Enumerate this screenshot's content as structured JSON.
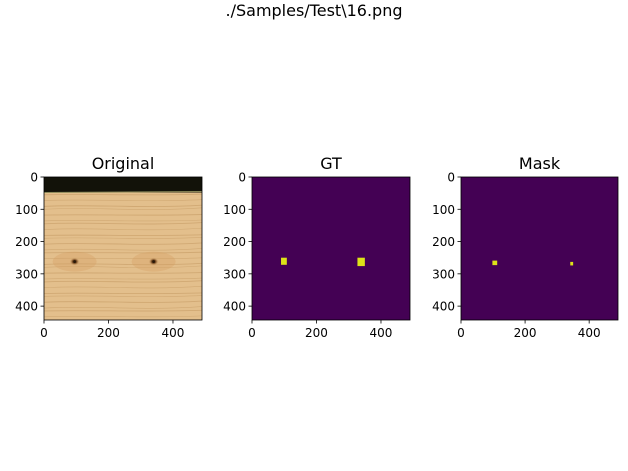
{
  "figure": {
    "suptitle": "./Samples/Test\\16.png"
  },
  "chart_data": [
    {
      "type": "image",
      "title": "Original",
      "content": "photograph of a wood plank with two knots",
      "xlim": [
        0,
        490
      ],
      "ylim": [
        443,
        0
      ],
      "xticks": [
        0,
        200,
        400
      ],
      "yticks": [
        0,
        100,
        200,
        300,
        400
      ],
      "features": [
        {
          "name": "dark-top-band",
          "y_range": [
            0,
            48
          ]
        },
        {
          "name": "knot",
          "x": 95,
          "y": 262
        },
        {
          "name": "knot",
          "x": 340,
          "y": 262
        }
      ],
      "colors": {
        "wood": "#e3bf8c",
        "grain": "#c9a06a",
        "band": "#121209",
        "knot": "#6e4522"
      }
    },
    {
      "type": "heatmap",
      "title": "GT",
      "xlim": [
        0,
        490
      ],
      "ylim": [
        443,
        0
      ],
      "xticks": [
        0,
        200,
        400
      ],
      "yticks": [
        0,
        100,
        200,
        300,
        400
      ],
      "background_color": "#440154",
      "highlight_color": "#dde318",
      "regions": [
        {
          "x0": 90,
          "x1": 108,
          "y0": 250,
          "y1": 272
        },
        {
          "x0": 327,
          "x1": 350,
          "y0": 250,
          "y1": 276
        }
      ]
    },
    {
      "type": "heatmap",
      "title": "Mask",
      "xlim": [
        0,
        490
      ],
      "ylim": [
        443,
        0
      ],
      "xticks": [
        0,
        200,
        400
      ],
      "yticks": [
        0,
        100,
        200,
        300,
        400
      ],
      "background_color": "#440154",
      "highlight_color": "#dde318",
      "regions": [
        {
          "x0": 98,
          "x1": 113,
          "y0": 259,
          "y1": 273
        },
        {
          "x0": 341,
          "x1": 350,
          "y0": 263,
          "y1": 274
        }
      ]
    }
  ]
}
